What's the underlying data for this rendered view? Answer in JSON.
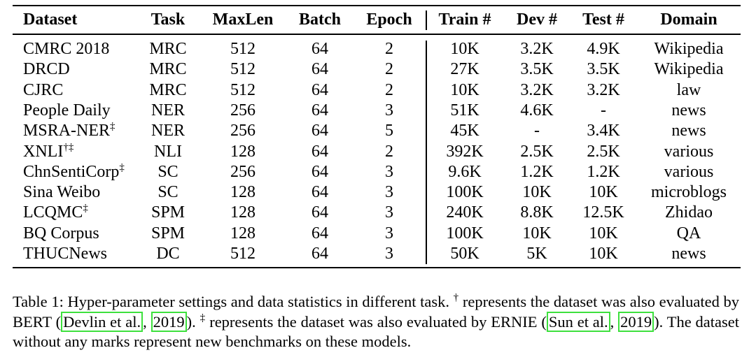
{
  "table": {
    "header": [
      "Dataset",
      "Task",
      "MaxLen",
      "Batch",
      "Epoch",
      "Train #",
      "Dev #",
      "Test #",
      "Domain"
    ],
    "rows": [
      [
        "CMRC 2018",
        "MRC",
        "512",
        "64",
        "2",
        "10K",
        "3.2K",
        "4.9K",
        "Wikipedia"
      ],
      [
        "DRCD",
        "MRC",
        "512",
        "64",
        "2",
        "27K",
        "3.5K",
        "3.5K",
        "Wikipedia"
      ],
      [
        "CJRC",
        "MRC",
        "512",
        "64",
        "2",
        "10K",
        "3.2K",
        "3.2K",
        "law"
      ],
      [
        "People Daily",
        "NER",
        "256",
        "64",
        "3",
        "51K",
        "4.6K",
        "-",
        "news"
      ],
      [
        {
          "text": "MSRA-NER",
          "sup": "‡"
        },
        "NER",
        "256",
        "64",
        "5",
        "45K",
        "-",
        "3.4K",
        "news"
      ],
      [
        {
          "text": "XNLI",
          "sup": "†‡"
        },
        "NLI",
        "128",
        "64",
        "2",
        "392K",
        "2.5K",
        "2.5K",
        "various"
      ],
      [
        {
          "text": "ChnSentiCorp",
          "sup": "‡"
        },
        "SC",
        "256",
        "64",
        "3",
        "9.6K",
        "1.2K",
        "1.2K",
        "various"
      ],
      [
        "Sina Weibo",
        "SC",
        "128",
        "64",
        "3",
        "100K",
        "10K",
        "10K",
        "microblogs"
      ],
      [
        {
          "text": "LCQMC",
          "sup": "‡"
        },
        "SPM",
        "128",
        "64",
        "3",
        "240K",
        "8.8K",
        "12.5K",
        "Zhidao"
      ],
      [
        "BQ Corpus",
        "SPM",
        "128",
        "64",
        "3",
        "100K",
        "10K",
        "10K",
        "QA"
      ],
      [
        "THUCNews",
        "DC",
        "512",
        "64",
        "3",
        "50K",
        "5K",
        "10K",
        "news"
      ]
    ]
  },
  "caption": [
    {
      "t": "Table 1: Hyper-parameter settings and data statistics in different task. "
    },
    {
      "sup": "†"
    },
    {
      "t": " represents the dataset was also evaluated by BERT ("
    },
    {
      "cite": "Devlin et al."
    },
    {
      "t": ", "
    },
    {
      "cite": "2019"
    },
    {
      "t": "). "
    },
    {
      "sup": "‡"
    },
    {
      "t": " represents the dataset was also evaluated by ERNIE ("
    },
    {
      "cite": "Sun et al."
    },
    {
      "t": ", "
    },
    {
      "cite": "2019"
    },
    {
      "t": "). The dataset without any marks represent new benchmarks on these models."
    }
  ]
}
